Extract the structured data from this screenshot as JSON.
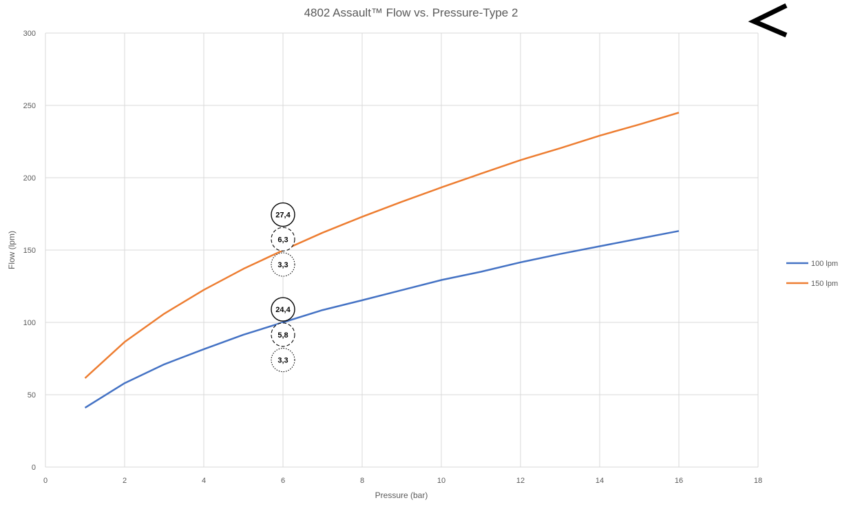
{
  "chart_data": {
    "type": "line",
    "title": "4802 Assault™ Flow vs. Pressure-Type 2",
    "xlabel": "Pressure (bar)",
    "ylabel": "Flow (lpm)",
    "xlim": [
      0,
      18
    ],
    "ylim": [
      0,
      300
    ],
    "x_ticks": [
      "0",
      "2",
      "4",
      "6",
      "8",
      "10",
      "12",
      "14",
      "16",
      "18"
    ],
    "y_ticks": [
      "0",
      "50",
      "100",
      "150",
      "200",
      "250",
      "300"
    ],
    "grid": true,
    "legend_position": "right",
    "series": [
      {
        "name": "100 lpm",
        "color": "#4472c4",
        "x": [
          1,
          2,
          3,
          4,
          5,
          6,
          7,
          8,
          9,
          10,
          11,
          12,
          13,
          14,
          15,
          16
        ],
        "y": [
          41,
          58,
          71,
          81.5,
          91.5,
          100,
          108.5,
          115.3,
          122.3,
          129.3,
          135,
          141.5,
          147.3,
          152.6,
          157.9,
          163.2
        ]
      },
      {
        "name": "150 lpm",
        "color": "#ed7d31",
        "x": [
          1,
          2,
          3,
          4,
          5,
          6,
          7,
          8,
          9,
          10,
          11,
          12,
          13,
          14,
          15,
          16
        ],
        "y": [
          61.5,
          86.5,
          106,
          122.5,
          137,
          149.8,
          162,
          173,
          183.4,
          193.3,
          202.8,
          212.2,
          220.4,
          229.1,
          236.8,
          245
        ]
      }
    ],
    "annotations": [
      {
        "text": "27,4",
        "x": 6,
        "y": 174.5,
        "style": "solid"
      },
      {
        "text": "6,3",
        "x": 6,
        "y": 157.5,
        "style": "dashed"
      },
      {
        "text": "3,3",
        "x": 6,
        "y": 140,
        "style": "dotted"
      },
      {
        "text": "24,4",
        "x": 6,
        "y": 109,
        "style": "solid"
      },
      {
        "text": "5,8",
        "x": 6,
        "y": 91.5,
        "style": "dashed"
      },
      {
        "text": "3,3",
        "x": 6,
        "y": 74,
        "style": "dotted"
      }
    ]
  },
  "nav": {
    "back_icon": "chevron-left-icon"
  }
}
